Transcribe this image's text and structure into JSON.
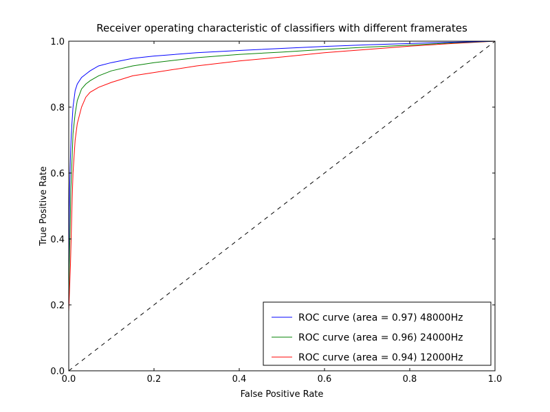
{
  "chart_data": {
    "type": "line",
    "title": "Receiver operating characteristic of classifiers with different framerates",
    "xlabel": "False Positive Rate",
    "ylabel": "True Positive Rate",
    "xlim": [
      0.0,
      1.0
    ],
    "ylim": [
      0.0,
      1.0
    ],
    "xticks": [
      "0.0",
      "0.2",
      "0.4",
      "0.6",
      "0.8",
      "1.0"
    ],
    "yticks": [
      "0.0",
      "0.2",
      "0.4",
      "0.6",
      "0.8",
      "1.0"
    ],
    "grid": false,
    "legend_position": "lower-right",
    "series": [
      {
        "name": "ROC curve (area = 0.97) 48000Hz",
        "color": "#0000ff",
        "points": [
          [
            0,
            0.0
          ],
          [
            0,
            0.3
          ],
          [
            0.001,
            0.45
          ],
          [
            0.002,
            0.55
          ],
          [
            0.004,
            0.65
          ],
          [
            0.006,
            0.72
          ],
          [
            0.008,
            0.76
          ],
          [
            0.01,
            0.8
          ],
          [
            0.015,
            0.85
          ],
          [
            0.02,
            0.87
          ],
          [
            0.03,
            0.89
          ],
          [
            0.04,
            0.9
          ],
          [
            0.05,
            0.91
          ],
          [
            0.07,
            0.925
          ],
          [
            0.1,
            0.935
          ],
          [
            0.15,
            0.948
          ],
          [
            0.2,
            0.955
          ],
          [
            0.3,
            0.965
          ],
          [
            0.4,
            0.972
          ],
          [
            0.5,
            0.978
          ],
          [
            0.6,
            0.984
          ],
          [
            0.7,
            0.989
          ],
          [
            0.8,
            0.993
          ],
          [
            0.9,
            0.997
          ],
          [
            1.0,
            1.0
          ]
        ]
      },
      {
        "name": "ROC curve (area = 0.96) 24000Hz",
        "color": "#008000",
        "points": [
          [
            0,
            0.0
          ],
          [
            0,
            0.22
          ],
          [
            0.001,
            0.3
          ],
          [
            0.003,
            0.42
          ],
          [
            0.005,
            0.55
          ],
          [
            0.008,
            0.65
          ],
          [
            0.01,
            0.72
          ],
          [
            0.015,
            0.78
          ],
          [
            0.02,
            0.82
          ],
          [
            0.03,
            0.855
          ],
          [
            0.04,
            0.87
          ],
          [
            0.05,
            0.88
          ],
          [
            0.07,
            0.895
          ],
          [
            0.1,
            0.91
          ],
          [
            0.15,
            0.925
          ],
          [
            0.2,
            0.935
          ],
          [
            0.3,
            0.95
          ],
          [
            0.4,
            0.96
          ],
          [
            0.5,
            0.967
          ],
          [
            0.6,
            0.975
          ],
          [
            0.7,
            0.982
          ],
          [
            0.8,
            0.988
          ],
          [
            0.9,
            0.995
          ],
          [
            1.0,
            1.0
          ]
        ]
      },
      {
        "name": "ROC curve (area = 0.94) 12000Hz",
        "color": "#ff0000",
        "points": [
          [
            0,
            0.0
          ],
          [
            0,
            0.18
          ],
          [
            0.002,
            0.25
          ],
          [
            0.004,
            0.32
          ],
          [
            0.006,
            0.42
          ],
          [
            0.008,
            0.52
          ],
          [
            0.01,
            0.6
          ],
          [
            0.015,
            0.7
          ],
          [
            0.02,
            0.75
          ],
          [
            0.03,
            0.8
          ],
          [
            0.04,
            0.83
          ],
          [
            0.05,
            0.845
          ],
          [
            0.07,
            0.86
          ],
          [
            0.1,
            0.875
          ],
          [
            0.15,
            0.895
          ],
          [
            0.2,
            0.905
          ],
          [
            0.3,
            0.925
          ],
          [
            0.4,
            0.94
          ],
          [
            0.5,
            0.952
          ],
          [
            0.6,
            0.965
          ],
          [
            0.7,
            0.975
          ],
          [
            0.8,
            0.985
          ],
          [
            0.9,
            0.993
          ],
          [
            1.0,
            1.0
          ]
        ]
      },
      {
        "name": "",
        "color": "#000000",
        "style": "dashed",
        "points": [
          [
            0,
            0
          ],
          [
            1,
            1
          ]
        ]
      }
    ]
  }
}
